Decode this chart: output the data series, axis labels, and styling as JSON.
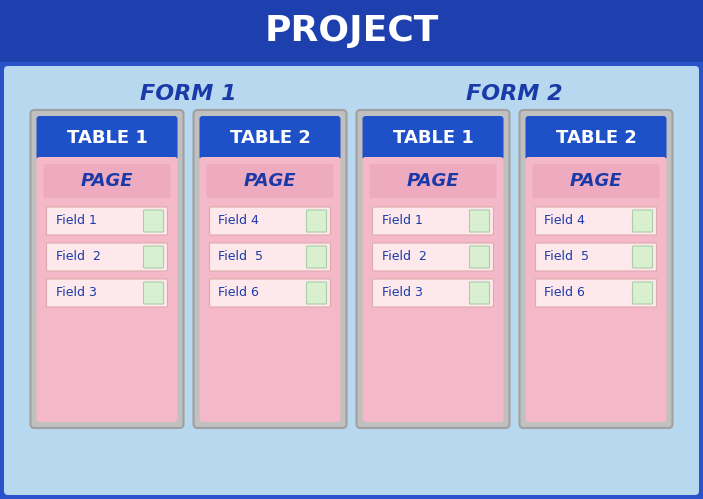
{
  "title": "PROJECT",
  "title_bg": "#1e3fae",
  "title_color": "#ffffff",
  "title_fontsize": 26,
  "outer_bg": "#2a52c9",
  "inner_bg": "#b8d8f0",
  "table_outer_bg": "#c0c0c0",
  "table_outer_edge": "#a0a0a0",
  "table_header_bg": "#1e50c8",
  "table_header_color": "#ffffff",
  "table_header_fontsize": 13,
  "page_area_bg": "#f5b8c8",
  "page_label_bg": "#eeaabf",
  "page_label_color": "#1a3aaa",
  "page_label_fontsize": 13,
  "field_bg": "#fde8ec",
  "field_edge": "#ddaaaa",
  "field_btn_bg": "#d8f0d0",
  "field_btn_edge": "#aaccaa",
  "field_label_color": "#1a3aaa",
  "field_fontsize": 9,
  "form_label_color": "#1a3aaa",
  "form_label_fontsize": 16,
  "forms": [
    {
      "label": "FORM 1",
      "tables": [
        {
          "label": "TABLE 1",
          "page_label": "PAGE",
          "fields": [
            "Field 1",
            "Field  2",
            "Field 3"
          ]
        },
        {
          "label": "TABLE 2",
          "page_label": "PAGE",
          "fields": [
            "Field 4",
            "Field  5",
            "Field 6"
          ]
        }
      ]
    },
    {
      "label": "FORM 2",
      "tables": [
        {
          "label": "TABLE 1",
          "page_label": "PAGE",
          "fields": [
            "Field 1",
            "Field  2",
            "Field 3"
          ]
        },
        {
          "label": "TABLE 2",
          "page_label": "PAGE",
          "fields": [
            "Field 4",
            "Field  5",
            "Field 6"
          ]
        }
      ]
    }
  ],
  "fig_w": 7.03,
  "fig_h": 4.99,
  "dpi": 100
}
